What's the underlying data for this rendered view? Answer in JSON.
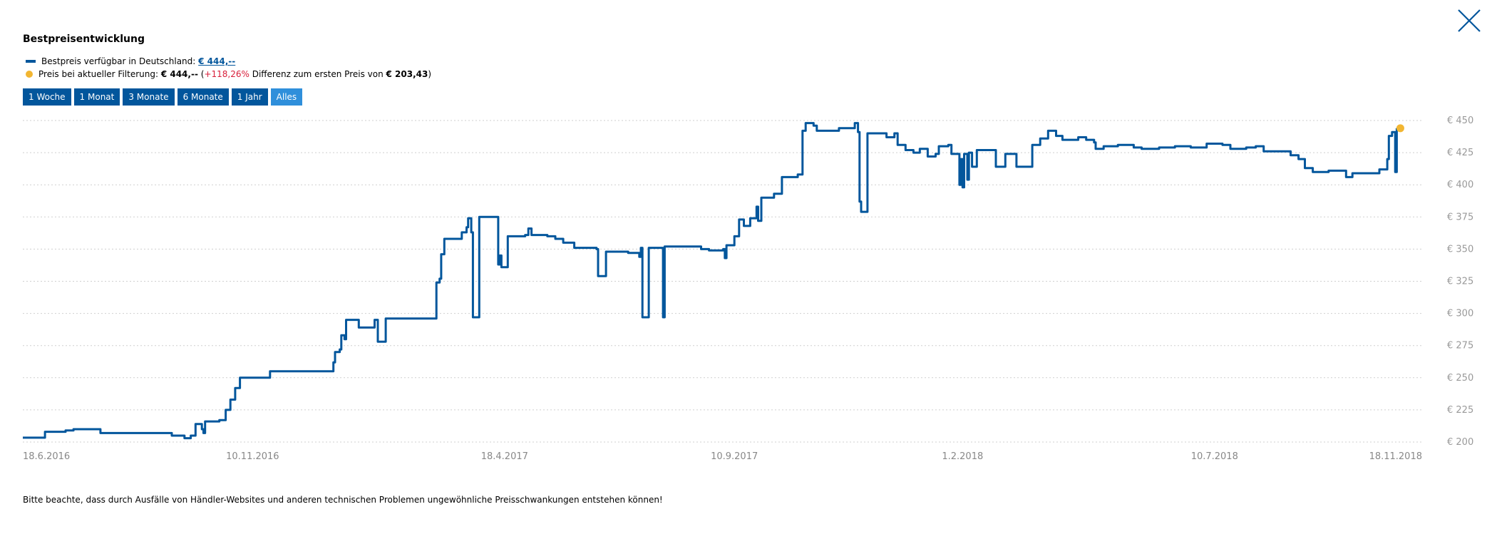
{
  "dialog": {
    "close_icon": "close-icon",
    "title": "Bestpreisentwicklung"
  },
  "legend": {
    "line_label": "Bestpreis verfügbar in Deutschland: ",
    "line_value": "€ 444,--",
    "line_color": "#02569c",
    "dot_label": "Preis bei aktueller Filterung: ",
    "dot_value": "€ 444,--",
    "paren_open": " (",
    "diff_percent": "+118,26%",
    "diff_text": " Differenz zum ersten Preis von ",
    "first_price": "€ 203,43",
    "paren_close": ")",
    "dot_color": "#f2b632",
    "negative_color": "#d81f3a"
  },
  "range_buttons": [
    {
      "label": "1 Woche",
      "active": false
    },
    {
      "label": "1 Monat",
      "active": false
    },
    {
      "label": "3 Monate",
      "active": false
    },
    {
      "label": "6 Monate",
      "active": false
    },
    {
      "label": "1 Jahr",
      "active": false
    },
    {
      "label": "Alles",
      "active": true
    }
  ],
  "chart_data": {
    "type": "line",
    "title": "",
    "xlabel": "",
    "ylabel": "",
    "ylim": [
      200,
      450
    ],
    "xlim": [
      "2016-06-18",
      "2018-11-18"
    ],
    "grid": true,
    "y_ticks": [
      {
        "value": 200,
        "label": "€ 200"
      },
      {
        "value": 225,
        "label": "€ 225"
      },
      {
        "value": 250,
        "label": "€ 250"
      },
      {
        "value": 275,
        "label": "€ 275"
      },
      {
        "value": 300,
        "label": "€ 300"
      },
      {
        "value": 325,
        "label": "€ 325"
      },
      {
        "value": 350,
        "label": "€ 350"
      },
      {
        "value": 375,
        "label": "€ 375"
      },
      {
        "value": 400,
        "label": "€ 400"
      },
      {
        "value": 425,
        "label": "€ 425"
      },
      {
        "value": 450,
        "label": "€ 450"
      }
    ],
    "x_ticks": [
      {
        "value": "2016-06-18",
        "label": "18.6.2016"
      },
      {
        "value": "2016-11-10",
        "label": "10.11.2016"
      },
      {
        "value": "2017-04-18",
        "label": "18.4.2017"
      },
      {
        "value": "2017-09-10",
        "label": "10.9.2017"
      },
      {
        "value": "2018-02-01",
        "label": "1.2.2018"
      },
      {
        "value": "2018-07-10",
        "label": "10.7.2018"
      },
      {
        "value": "2018-11-18",
        "label": "18.11.2018"
      }
    ],
    "series": [
      {
        "color": "#02569c",
        "points": [
          [
            "2016-06-18",
            203.4
          ],
          [
            "2016-07-01",
            203.4
          ],
          [
            "2016-07-02",
            208
          ],
          [
            "2016-07-15",
            209
          ],
          [
            "2016-07-20",
            210
          ],
          [
            "2016-08-05",
            210
          ],
          [
            "2016-08-06",
            207
          ],
          [
            "2016-09-12",
            207
          ],
          [
            "2016-09-20",
            205
          ],
          [
            "2016-09-28",
            203
          ],
          [
            "2016-10-02",
            205
          ],
          [
            "2016-10-05",
            214
          ],
          [
            "2016-10-09",
            210
          ],
          [
            "2016-10-10",
            207
          ],
          [
            "2016-10-11",
            216
          ],
          [
            "2016-10-20",
            217
          ],
          [
            "2016-10-24",
            225
          ],
          [
            "2016-10-27",
            233
          ],
          [
            "2016-10-30",
            242
          ],
          [
            "2016-11-02",
            250
          ],
          [
            "2016-11-20",
            250
          ],
          [
            "2016-11-21",
            255
          ],
          [
            "2016-12-30",
            255
          ],
          [
            "2016-12-31",
            262
          ],
          [
            "2017-01-01",
            270
          ],
          [
            "2017-01-04",
            272
          ],
          [
            "2017-01-05",
            283
          ],
          [
            "2017-01-07",
            280
          ],
          [
            "2017-01-08",
            295
          ],
          [
            "2017-01-15",
            295
          ],
          [
            "2017-01-16",
            289
          ],
          [
            "2017-01-25",
            289
          ],
          [
            "2017-01-26",
            295
          ],
          [
            "2017-01-27",
            295
          ],
          [
            "2017-01-28",
            278
          ],
          [
            "2017-02-01",
            278
          ],
          [
            "2017-02-02",
            296
          ],
          [
            "2017-03-05",
            296
          ],
          [
            "2017-03-06",
            324
          ],
          [
            "2017-03-08",
            327
          ],
          [
            "2017-03-09",
            346
          ],
          [
            "2017-03-11",
            358
          ],
          [
            "2017-03-20",
            358
          ],
          [
            "2017-03-22",
            363
          ],
          [
            "2017-03-25",
            367
          ],
          [
            "2017-03-26",
            374
          ],
          [
            "2017-03-28",
            363
          ],
          [
            "2017-03-29",
            297
          ],
          [
            "2017-04-01",
            297
          ],
          [
            "2017-04-02",
            375
          ],
          [
            "2017-04-13",
            375
          ],
          [
            "2017-04-14",
            338
          ],
          [
            "2017-04-15",
            345
          ],
          [
            "2017-04-16",
            336
          ],
          [
            "2017-04-19",
            336
          ],
          [
            "2017-04-20",
            360
          ],
          [
            "2017-05-01",
            361
          ],
          [
            "2017-05-03",
            366
          ],
          [
            "2017-05-05",
            361
          ],
          [
            "2017-05-15",
            360
          ],
          [
            "2017-05-20",
            358
          ],
          [
            "2017-05-25",
            355
          ],
          [
            "2017-06-01",
            351
          ],
          [
            "2017-06-15",
            350
          ],
          [
            "2017-06-16",
            329
          ],
          [
            "2017-06-20",
            329
          ],
          [
            "2017-06-21",
            348
          ],
          [
            "2017-06-28",
            348
          ],
          [
            "2017-07-05",
            347
          ],
          [
            "2017-07-12",
            344
          ],
          [
            "2017-07-13",
            351
          ],
          [
            "2017-07-14",
            297
          ],
          [
            "2017-07-17",
            297
          ],
          [
            "2017-07-18",
            351
          ],
          [
            "2017-07-26",
            351
          ],
          [
            "2017-07-27",
            297
          ],
          [
            "2017-07-28",
            352
          ],
          [
            "2017-08-15",
            352
          ],
          [
            "2017-08-20",
            350
          ],
          [
            "2017-08-25",
            349
          ],
          [
            "2017-09-03",
            350
          ],
          [
            "2017-09-04",
            343
          ],
          [
            "2017-09-05",
            353
          ],
          [
            "2017-09-10",
            360
          ],
          [
            "2017-09-13",
            373
          ],
          [
            "2017-09-16",
            368
          ],
          [
            "2017-09-20",
            374
          ],
          [
            "2017-09-24",
            383
          ],
          [
            "2017-09-25",
            372
          ],
          [
            "2017-09-27",
            390
          ],
          [
            "2017-10-05",
            393
          ],
          [
            "2017-10-10",
            406
          ],
          [
            "2017-10-20",
            408
          ],
          [
            "2017-10-22",
            408
          ],
          [
            "2017-10-23",
            442
          ],
          [
            "2017-10-25",
            448
          ],
          [
            "2017-10-30",
            446
          ],
          [
            "2017-11-01",
            442
          ],
          [
            "2017-11-15",
            444
          ],
          [
            "2017-11-25",
            448
          ],
          [
            "2017-11-27",
            441
          ],
          [
            "2017-11-28",
            387
          ],
          [
            "2017-11-29",
            379
          ],
          [
            "2017-12-02",
            379
          ],
          [
            "2017-12-03",
            440
          ],
          [
            "2017-12-15",
            437
          ],
          [
            "2017-12-20",
            440
          ],
          [
            "2017-12-22",
            431
          ],
          [
            "2017-12-27",
            427
          ],
          [
            "2018-01-01",
            425
          ],
          [
            "2018-01-05",
            428
          ],
          [
            "2018-01-10",
            422
          ],
          [
            "2018-01-15",
            424
          ],
          [
            "2018-01-17",
            430
          ],
          [
            "2018-01-23",
            431
          ],
          [
            "2018-01-25",
            424
          ],
          [
            "2018-01-29",
            424
          ],
          [
            "2018-01-30",
            400
          ],
          [
            "2018-01-31",
            420
          ],
          [
            "2018-02-01",
            398
          ],
          [
            "2018-02-02",
            424
          ],
          [
            "2018-02-04",
            404
          ],
          [
            "2018-02-05",
            425
          ],
          [
            "2018-02-07",
            414
          ],
          [
            "2018-02-10",
            427
          ],
          [
            "2018-02-20",
            427
          ],
          [
            "2018-02-22",
            414
          ],
          [
            "2018-02-27",
            414
          ],
          [
            "2018-02-28",
            424
          ],
          [
            "2018-03-05",
            424
          ],
          [
            "2018-03-07",
            414
          ],
          [
            "2018-03-14",
            414
          ],
          [
            "2018-03-17",
            431
          ],
          [
            "2018-03-22",
            436
          ],
          [
            "2018-03-27",
            442
          ],
          [
            "2018-04-01",
            438
          ],
          [
            "2018-04-05",
            435
          ],
          [
            "2018-04-15",
            437
          ],
          [
            "2018-04-20",
            435
          ],
          [
            "2018-04-25",
            433
          ],
          [
            "2018-04-26",
            428
          ],
          [
            "2018-05-01",
            430
          ],
          [
            "2018-05-10",
            431
          ],
          [
            "2018-05-20",
            429
          ],
          [
            "2018-05-25",
            428
          ],
          [
            "2018-06-05",
            429
          ],
          [
            "2018-06-15",
            430
          ],
          [
            "2018-06-25",
            429
          ],
          [
            "2018-07-05",
            432
          ],
          [
            "2018-07-15",
            431
          ],
          [
            "2018-07-20",
            428
          ],
          [
            "2018-07-30",
            429
          ],
          [
            "2018-08-05",
            430
          ],
          [
            "2018-08-10",
            426
          ],
          [
            "2018-08-22",
            426
          ],
          [
            "2018-08-27",
            423
          ],
          [
            "2018-09-01",
            420
          ],
          [
            "2018-09-05",
            413
          ],
          [
            "2018-09-10",
            410
          ],
          [
            "2018-09-20",
            411
          ],
          [
            "2018-09-27",
            411
          ],
          [
            "2018-10-01",
            406
          ],
          [
            "2018-10-05",
            409
          ],
          [
            "2018-10-15",
            409
          ],
          [
            "2018-10-22",
            412
          ],
          [
            "2018-10-27",
            420
          ],
          [
            "2018-10-28",
            438
          ],
          [
            "2018-10-30",
            441
          ],
          [
            "2018-11-01",
            410
          ],
          [
            "2018-11-02",
            444
          ]
        ]
      }
    ],
    "current_point": {
      "x": "2018-11-02",
      "y": 444
    }
  },
  "footer": {
    "note": "Bitte beachte, dass durch Ausfälle von Händler-Websites und anderen technischen Problemen ungewöhnliche Preisschwankungen entstehen können!"
  }
}
